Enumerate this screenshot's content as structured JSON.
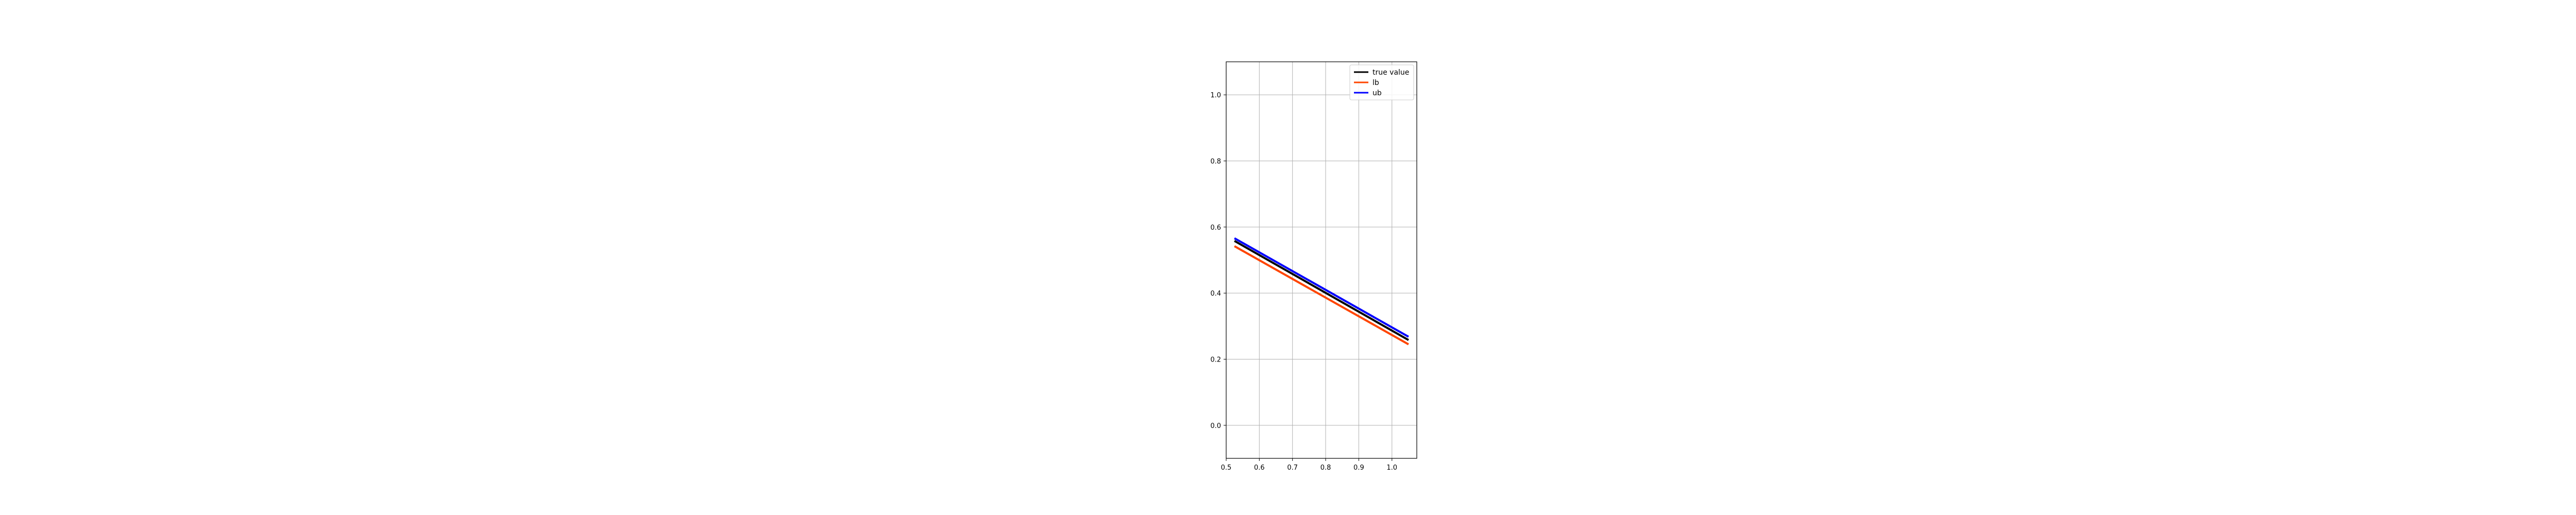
{
  "chart_data": {
    "type": "line",
    "title": "",
    "xlabel": "",
    "ylabel": "",
    "xlim": [
      0.5,
      1.075
    ],
    "ylim": [
      -0.1,
      1.1
    ],
    "xticks": [
      0.5,
      0.6,
      0.7,
      0.8,
      0.9,
      1.0
    ],
    "xtick_labels": [
      "0.5",
      "0.6",
      "0.7",
      "0.8",
      "0.9",
      "1.0"
    ],
    "yticks": [
      0.0,
      0.2,
      0.4,
      0.6,
      0.8,
      1.0
    ],
    "ytick_labels": [
      "0.0",
      "0.2",
      "0.4",
      "0.6",
      "0.8",
      "1.0"
    ],
    "grid": true,
    "legend_position": "top-right",
    "series": [
      {
        "name": "true value",
        "color": "#000000",
        "x": [
          0.525,
          1.05
        ],
        "y": [
          0.558,
          0.258
        ]
      },
      {
        "name": "lb",
        "color": "#ff4500",
        "x": [
          0.525,
          1.05
        ],
        "y": [
          0.542,
          0.245
        ]
      },
      {
        "name": "ub",
        "color": "#0000ff",
        "x": [
          0.525,
          1.05
        ],
        "y": [
          0.566,
          0.268
        ]
      }
    ]
  }
}
